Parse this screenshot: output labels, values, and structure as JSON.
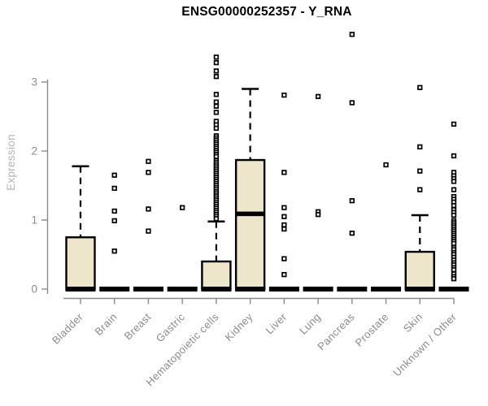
{
  "colors": {
    "background": "#ffffff",
    "box_fill": "#ede6cb",
    "box_stroke": "#000000",
    "axis": "#8a8a8a",
    "axis_title": "#b4b4b4",
    "title": "#000000"
  },
  "chart_data": {
    "type": "boxplot",
    "title": "ENSG00000252357 - Y_RNA",
    "ylabel": "Expression",
    "xlabel": "",
    "ylim": [
      0,
      3.75
    ],
    "yticks": [
      0,
      1,
      2,
      3
    ],
    "grid": false,
    "legend": "none",
    "categories": [
      "Bladder",
      "Brain",
      "Breast",
      "Gastric",
      "Hematopoietic cells",
      "Kidney",
      "Liver",
      "Lung",
      "Pancreas",
      "Prostate",
      "Skin",
      "Unknown / Other"
    ],
    "boxes": [
      {
        "category": "Bladder",
        "whisker_low": 0,
        "q1": 0,
        "median": 0,
        "q3": 0.75,
        "whisker_high": 1.78,
        "outliers": []
      },
      {
        "category": "Brain",
        "whisker_low": 0,
        "q1": 0,
        "median": 0,
        "q3": 0,
        "whisker_high": 0,
        "outliers": [
          1.65,
          1.46,
          1.13,
          0.99,
          0.55
        ]
      },
      {
        "category": "Breast",
        "whisker_low": 0,
        "q1": 0,
        "median": 0,
        "q3": 0,
        "whisker_high": 0,
        "outliers": [
          1.85,
          1.69,
          1.16,
          0.84
        ]
      },
      {
        "category": "Gastric",
        "whisker_low": 0,
        "q1": 0,
        "median": 0,
        "q3": 0,
        "whisker_high": 0,
        "outliers": [
          1.18
        ]
      },
      {
        "category": "Hematopoietic cells",
        "whisker_low": 0,
        "q1": 0,
        "median": 0,
        "q3": 0.4,
        "whisker_high": 0.98,
        "outliers": [
          3.36,
          3.28,
          3.16,
          3.08,
          2.82,
          2.71,
          2.65,
          2.56,
          2.43,
          2.38,
          2.33,
          2.22,
          2.19,
          2.16,
          2.13,
          2.1,
          2.07,
          2.04,
          2.01,
          1.98,
          1.95,
          1.92,
          1.86,
          1.83,
          1.8,
          1.77,
          1.74,
          1.71,
          1.68,
          1.65,
          1.62,
          1.59,
          1.56,
          1.53,
          1.5,
          1.47,
          1.44,
          1.41,
          1.38,
          1.35,
          1.32,
          1.29,
          1.26,
          1.23,
          1.2,
          1.17,
          1.14,
          1.11,
          1.08,
          1.05,
          1.02
        ]
      },
      {
        "category": "Kidney",
        "whisker_low": 0,
        "q1": 0,
        "median": 1.09,
        "q3": 1.87,
        "whisker_high": 2.9,
        "outliers": []
      },
      {
        "category": "Liver",
        "whisker_low": 0,
        "q1": 0,
        "median": 0,
        "q3": 0,
        "whisker_high": 0,
        "outliers": [
          2.81,
          1.69,
          1.18,
          1.05,
          0.93,
          0.87,
          0.44,
          0.21
        ]
      },
      {
        "category": "Lung",
        "whisker_low": 0,
        "q1": 0,
        "median": 0,
        "q3": 0,
        "whisker_high": 0,
        "outliers": [
          2.79,
          1.12,
          1.08
        ]
      },
      {
        "category": "Pancreas",
        "whisker_low": 0,
        "q1": 0,
        "median": 0,
        "q3": 0,
        "whisker_high": 0,
        "outliers": [
          3.69,
          2.7,
          1.28,
          0.81
        ]
      },
      {
        "category": "Prostate",
        "whisker_low": 0,
        "q1": 0,
        "median": 0,
        "q3": 0,
        "whisker_high": 0,
        "outliers": [
          1.8
        ]
      },
      {
        "category": "Skin",
        "whisker_low": 0,
        "q1": 0,
        "median": 0,
        "q3": 0.54,
        "whisker_high": 1.07,
        "outliers": [
          2.92,
          2.06,
          1.71,
          1.44
        ]
      },
      {
        "category": "Unknown / Other",
        "whisker_low": 0,
        "q1": 0,
        "median": 0,
        "q3": 0,
        "whisker_high": 0,
        "outliers": [
          2.39,
          1.93,
          1.69,
          1.64,
          1.6,
          1.56,
          1.44,
          1.34,
          1.3,
          1.26,
          1.21,
          1.15,
          1.11,
          1.07,
          0.99,
          0.96,
          0.93,
          0.9,
          0.87,
          0.84,
          0.81,
          0.78,
          0.75,
          0.72,
          0.69,
          0.66,
          0.6,
          0.57,
          0.53,
          0.5,
          0.46,
          0.42,
          0.38,
          0.35,
          0.31,
          0.28,
          0.22,
          0.18,
          0.15
        ]
      }
    ]
  }
}
